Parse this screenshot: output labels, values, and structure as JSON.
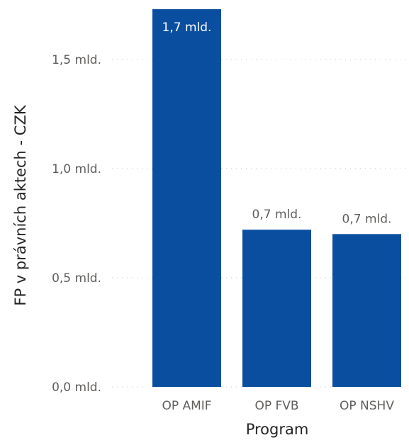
{
  "chart_data": {
    "type": "bar",
    "categories": [
      "OP AMIF",
      "OP FVB",
      "OP NSHV"
    ],
    "values": [
      1.73,
      0.72,
      0.7
    ],
    "data_labels": [
      "1,7 mld.",
      "0,7 mld.",
      "0,7 mld."
    ],
    "xlabel": "Program",
    "ylabel": "FP v právních aktech - CZK",
    "ylim": [
      0,
      1.73
    ],
    "yticks": [
      {
        "value": 0,
        "label": "0,0 mld."
      },
      {
        "value": 0.5,
        "label": "0,5 mld."
      },
      {
        "value": 1.0,
        "label": "1,0 mld."
      },
      {
        "value": 1.5,
        "label": "1,5 mld."
      }
    ],
    "grid": true,
    "colors": {
      "bar": "#0a4ea0",
      "label_inside": "#ffffff",
      "label_outside": "#605e5c"
    }
  }
}
